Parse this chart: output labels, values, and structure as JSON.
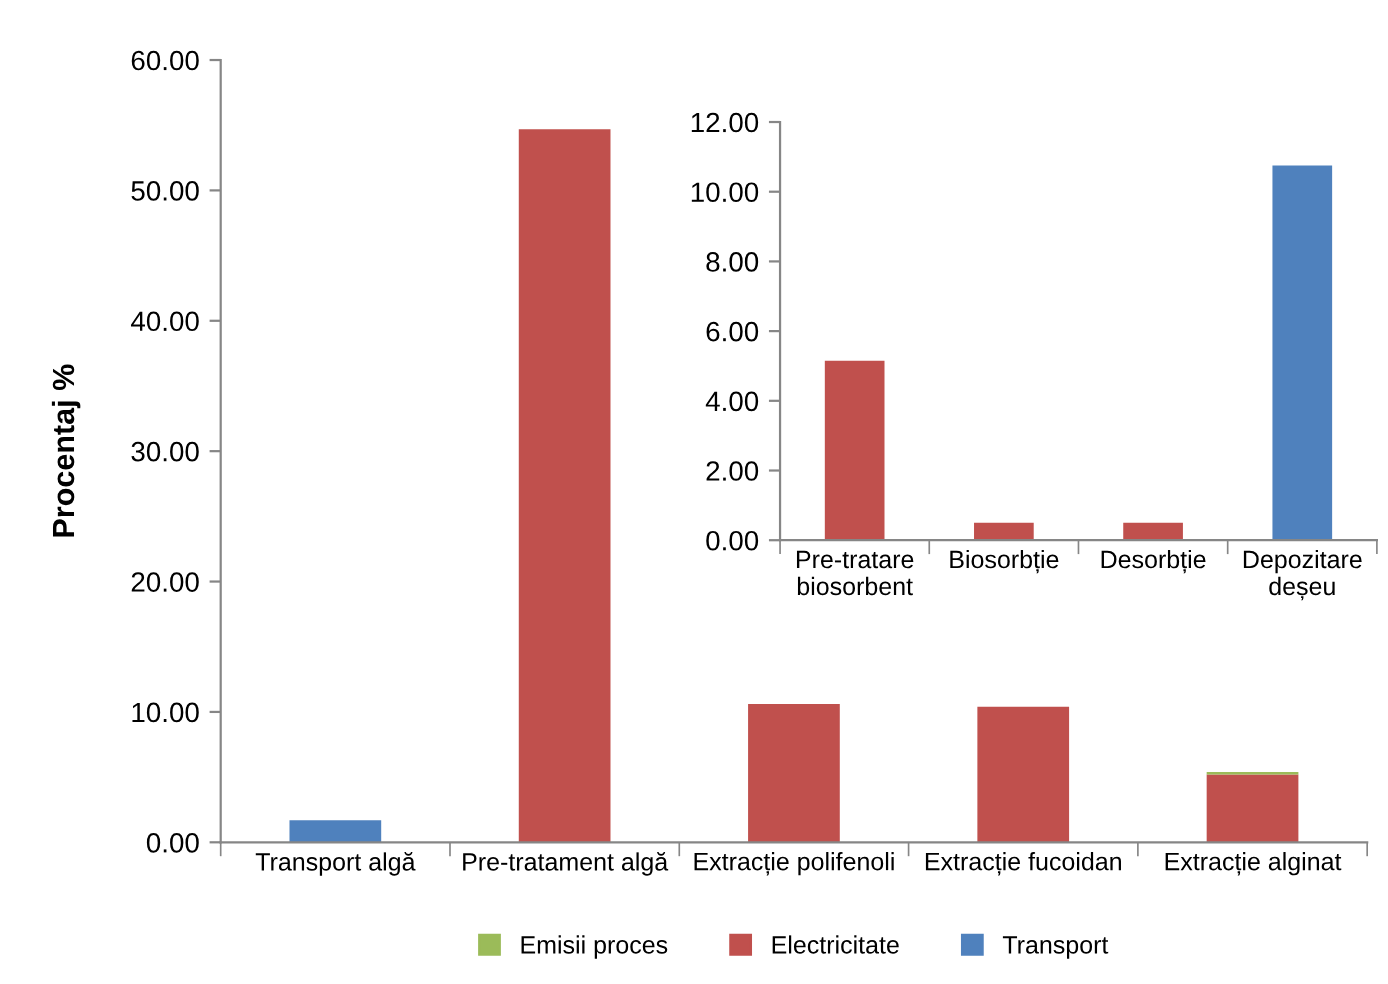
{
  "chart_data": [
    {
      "type": "bar",
      "stacked": true,
      "ylabel": "Procentaj %",
      "categories": [
        "Transport algă",
        "Pre-tratament algă",
        "Extracție polifenoli",
        "Extracție fucoidan",
        "Extracție alginat"
      ],
      "series": [
        {
          "name": "Electricitate",
          "color": "#c0504d",
          "values": [
            0,
            54.7,
            10.6,
            10.4,
            5.2
          ]
        },
        {
          "name": "Transport",
          "color": "#4f81bd",
          "values": [
            1.7,
            0,
            0,
            0,
            0
          ]
        },
        {
          "name": "Emisii proces",
          "color": "#9bbb59",
          "values": [
            0,
            0,
            0,
            0,
            0.2
          ]
        }
      ],
      "ylim": [
        0,
        60
      ],
      "yticks": [
        {
          "value": 0,
          "label": "0.00"
        },
        {
          "value": 10,
          "label": "10.00"
        },
        {
          "value": 20,
          "label": "20.00"
        },
        {
          "value": 30,
          "label": "30.00"
        },
        {
          "value": 40,
          "label": "40.00"
        },
        {
          "value": 50,
          "label": "50.00"
        },
        {
          "value": 60,
          "label": "60.00"
        }
      ],
      "grid": false,
      "legend": "bottom"
    },
    {
      "type": "bar",
      "stacked": true,
      "categories": [
        "Pre-tratare\nbiosorbent",
        "Biosorbție",
        "Desorbție",
        "Depozitare\ndeșeu"
      ],
      "series": [
        {
          "color": "#c0504d",
          "values": [
            5.15,
            0.5,
            0.5,
            0
          ]
        },
        {
          "color": "#4f81bd",
          "values": [
            0,
            0,
            0,
            10.75
          ]
        }
      ],
      "ylim": [
        0,
        12
      ],
      "yticks": [
        {
          "value": 0,
          "label": "0.00"
        },
        {
          "value": 2,
          "label": "2.00"
        },
        {
          "value": 4,
          "label": "4.00"
        },
        {
          "value": 6,
          "label": "6.00"
        },
        {
          "value": 8,
          "label": "8.00"
        },
        {
          "value": 10,
          "label": "10.00"
        },
        {
          "value": 12,
          "label": "12.00"
        }
      ],
      "grid": false,
      "legend": false
    }
  ]
}
